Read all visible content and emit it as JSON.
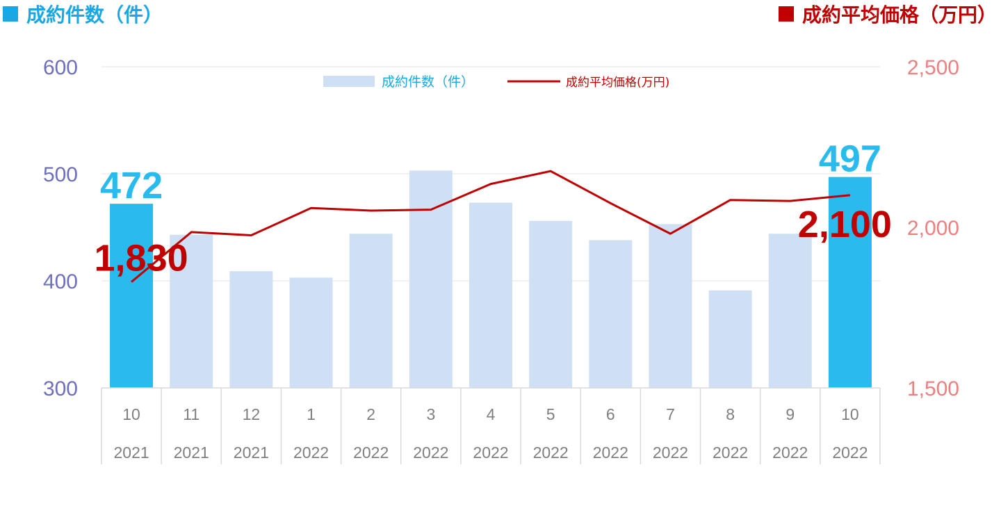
{
  "header": {
    "left_title": "成約件数（件）",
    "right_title": "成約平均価格（万円）",
    "left_color": "#1AA7E5",
    "right_color": "#C00000"
  },
  "chart_data": {
    "type": "bar+line",
    "categories": [
      {
        "month": "10",
        "year": "2021"
      },
      {
        "month": "11",
        "year": "2021"
      },
      {
        "month": "12",
        "year": "2021"
      },
      {
        "month": "1",
        "year": "2022"
      },
      {
        "month": "2",
        "year": "2022"
      },
      {
        "month": "3",
        "year": "2022"
      },
      {
        "month": "4",
        "year": "2022"
      },
      {
        "month": "5",
        "year": "2022"
      },
      {
        "month": "6",
        "year": "2022"
      },
      {
        "month": "7",
        "year": "2022"
      },
      {
        "month": "8",
        "year": "2022"
      },
      {
        "month": "9",
        "year": "2022"
      },
      {
        "month": "10",
        "year": "2022"
      }
    ],
    "series": [
      {
        "name": "成約件数（件）",
        "type": "bar",
        "axis": "left",
        "color": "#CFE0F4",
        "highlight_color": "#29BAEE",
        "highlight_indices": [
          0,
          12
        ],
        "values": [
          472,
          443,
          409,
          403,
          444,
          503,
          473,
          456,
          438,
          453,
          391,
          444,
          497
        ]
      },
      {
        "name": "成約平均価格(万円)",
        "type": "line",
        "axis": "right",
        "color": "#C00000",
        "values": [
          1830,
          1985,
          1975,
          2060,
          2052,
          2055,
          2135,
          2175,
          2075,
          1980,
          2085,
          2082,
          2100
        ]
      }
    ],
    "left_axis": {
      "min": 300,
      "max": 600,
      "ticks": [
        "300",
        "400",
        "500",
        "600"
      ]
    },
    "right_axis": {
      "min": 1500,
      "max": 2500,
      "ticks": [
        "1,500",
        "2,000",
        "2,500"
      ]
    },
    "data_labels": [
      {
        "text": "472",
        "series": 0,
        "index": 0,
        "color": "#29BAEE"
      },
      {
        "text": "497",
        "series": 0,
        "index": 12,
        "color": "#29BAEE"
      },
      {
        "text": "1,830",
        "series": 1,
        "index": 0,
        "color": "#C00000"
      },
      {
        "text": "2,100",
        "series": 1,
        "index": 12,
        "color": "#C00000"
      }
    ],
    "legend_position": "top-center",
    "grid": true
  }
}
